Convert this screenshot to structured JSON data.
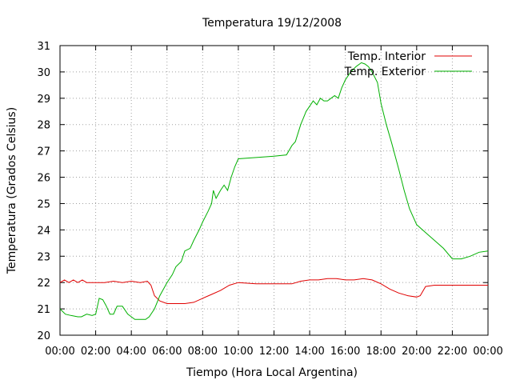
{
  "chart_data": {
    "type": "line",
    "title": "Temperatura 19/12/2008",
    "xlabel": "Tiempo (Hora Local Argentina)",
    "ylabel": "Temperatura (Grados Celsius)",
    "xlim": [
      0,
      24
    ],
    "ylim": [
      20,
      31
    ],
    "grid": true,
    "legend_position": "top-right",
    "x_ticks": [
      {
        "value": 0,
        "label": "00:00"
      },
      {
        "value": 2,
        "label": "02:00"
      },
      {
        "value": 4,
        "label": "04:00"
      },
      {
        "value": 6,
        "label": "06:00"
      },
      {
        "value": 8,
        "label": "08:00"
      },
      {
        "value": 10,
        "label": "10:00"
      },
      {
        "value": 12,
        "label": "12:00"
      },
      {
        "value": 14,
        "label": "14:00"
      },
      {
        "value": 16,
        "label": "16:00"
      },
      {
        "value": 18,
        "label": "18:00"
      },
      {
        "value": 20,
        "label": "20:00"
      },
      {
        "value": 22,
        "label": "22:00"
      },
      {
        "value": 24,
        "label": "00:00"
      }
    ],
    "y_ticks": [
      {
        "value": 20,
        "label": "20"
      },
      {
        "value": 21,
        "label": "21"
      },
      {
        "value": 22,
        "label": "22"
      },
      {
        "value": 23,
        "label": "23"
      },
      {
        "value": 24,
        "label": "24"
      },
      {
        "value": 25,
        "label": "25"
      },
      {
        "value": 26,
        "label": "26"
      },
      {
        "value": 27,
        "label": "27"
      },
      {
        "value": 28,
        "label": "28"
      },
      {
        "value": 29,
        "label": "29"
      },
      {
        "value": 30,
        "label": "30"
      },
      {
        "value": 31,
        "label": "31"
      }
    ],
    "series": [
      {
        "name": "Temp. Interior",
        "color": "#e00000",
        "points": [
          [
            0.0,
            22.0
          ],
          [
            0.25,
            22.1
          ],
          [
            0.5,
            22.0
          ],
          [
            0.75,
            22.1
          ],
          [
            1.0,
            22.0
          ],
          [
            1.25,
            22.1
          ],
          [
            1.5,
            22.0
          ],
          [
            2.0,
            22.0
          ],
          [
            2.5,
            22.0
          ],
          [
            3.0,
            22.05
          ],
          [
            3.5,
            22.0
          ],
          [
            4.0,
            22.05
          ],
          [
            4.5,
            22.0
          ],
          [
            4.9,
            22.05
          ],
          [
            5.1,
            21.9
          ],
          [
            5.3,
            21.5
          ],
          [
            5.6,
            21.3
          ],
          [
            6.0,
            21.2
          ],
          [
            7.0,
            21.2
          ],
          [
            7.5,
            21.25
          ],
          [
            8.0,
            21.4
          ],
          [
            8.5,
            21.55
          ],
          [
            9.0,
            21.7
          ],
          [
            9.5,
            21.9
          ],
          [
            10.0,
            22.0
          ],
          [
            11.0,
            21.95
          ],
          [
            12.0,
            21.95
          ],
          [
            13.0,
            21.95
          ],
          [
            13.5,
            22.05
          ],
          [
            14.0,
            22.1
          ],
          [
            14.5,
            22.1
          ],
          [
            15.0,
            22.15
          ],
          [
            15.5,
            22.15
          ],
          [
            16.0,
            22.1
          ],
          [
            16.5,
            22.1
          ],
          [
            17.0,
            22.15
          ],
          [
            17.5,
            22.1
          ],
          [
            18.0,
            21.95
          ],
          [
            18.5,
            21.75
          ],
          [
            19.0,
            21.6
          ],
          [
            19.5,
            21.5
          ],
          [
            20.0,
            21.45
          ],
          [
            20.2,
            21.5
          ],
          [
            20.5,
            21.85
          ],
          [
            21.0,
            21.9
          ],
          [
            21.5,
            21.9
          ],
          [
            22.0,
            21.9
          ],
          [
            23.0,
            21.9
          ],
          [
            24.0,
            21.9
          ]
        ]
      },
      {
        "name": "Temp. Exterior",
        "color": "#00b000",
        "points": [
          [
            0.0,
            21.0
          ],
          [
            0.3,
            20.8
          ],
          [
            0.6,
            20.75
          ],
          [
            1.0,
            20.7
          ],
          [
            1.2,
            20.7
          ],
          [
            1.5,
            20.8
          ],
          [
            1.8,
            20.75
          ],
          [
            2.0,
            20.8
          ],
          [
            2.2,
            21.4
          ],
          [
            2.4,
            21.35
          ],
          [
            2.6,
            21.1
          ],
          [
            2.8,
            20.8
          ],
          [
            3.0,
            20.8
          ],
          [
            3.2,
            21.1
          ],
          [
            3.5,
            21.1
          ],
          [
            3.8,
            20.8
          ],
          [
            4.0,
            20.7
          ],
          [
            4.2,
            20.6
          ],
          [
            4.5,
            20.6
          ],
          [
            4.8,
            20.6
          ],
          [
            5.0,
            20.7
          ],
          [
            5.3,
            21.0
          ],
          [
            5.6,
            21.5
          ],
          [
            6.0,
            22.0
          ],
          [
            6.3,
            22.3
          ],
          [
            6.5,
            22.6
          ],
          [
            6.8,
            22.8
          ],
          [
            7.0,
            23.2
          ],
          [
            7.3,
            23.3
          ],
          [
            7.5,
            23.6
          ],
          [
            7.8,
            24.0
          ],
          [
            8.0,
            24.3
          ],
          [
            8.3,
            24.7
          ],
          [
            8.5,
            25.0
          ],
          [
            8.6,
            25.5
          ],
          [
            8.75,
            25.2
          ],
          [
            9.0,
            25.5
          ],
          [
            9.2,
            25.7
          ],
          [
            9.4,
            25.5
          ],
          [
            9.6,
            26.0
          ],
          [
            9.8,
            26.4
          ],
          [
            10.0,
            26.7
          ],
          [
            11.0,
            26.75
          ],
          [
            12.0,
            26.8
          ],
          [
            12.7,
            26.85
          ],
          [
            13.0,
            27.2
          ],
          [
            13.2,
            27.35
          ],
          [
            13.5,
            28.0
          ],
          [
            13.8,
            28.5
          ],
          [
            14.0,
            28.7
          ],
          [
            14.2,
            28.9
          ],
          [
            14.4,
            28.75
          ],
          [
            14.6,
            29.0
          ],
          [
            14.8,
            28.9
          ],
          [
            15.0,
            28.9
          ],
          [
            15.2,
            29.0
          ],
          [
            15.4,
            29.1
          ],
          [
            15.6,
            29.0
          ],
          [
            15.8,
            29.4
          ],
          [
            16.0,
            29.7
          ],
          [
            16.3,
            30.0
          ],
          [
            16.6,
            30.2
          ],
          [
            16.9,
            30.35
          ],
          [
            17.1,
            30.3
          ],
          [
            17.3,
            30.2
          ],
          [
            17.5,
            30.0
          ],
          [
            17.8,
            29.6
          ],
          [
            18.0,
            28.8
          ],
          [
            18.3,
            28.0
          ],
          [
            18.6,
            27.3
          ],
          [
            19.0,
            26.3
          ],
          [
            19.3,
            25.5
          ],
          [
            19.6,
            24.8
          ],
          [
            20.0,
            24.2
          ],
          [
            20.5,
            23.9
          ],
          [
            21.0,
            23.6
          ],
          [
            21.5,
            23.3
          ],
          [
            22.0,
            22.9
          ],
          [
            22.5,
            22.9
          ],
          [
            23.0,
            23.0
          ],
          [
            23.5,
            23.15
          ],
          [
            24.0,
            23.2
          ]
        ]
      }
    ]
  }
}
